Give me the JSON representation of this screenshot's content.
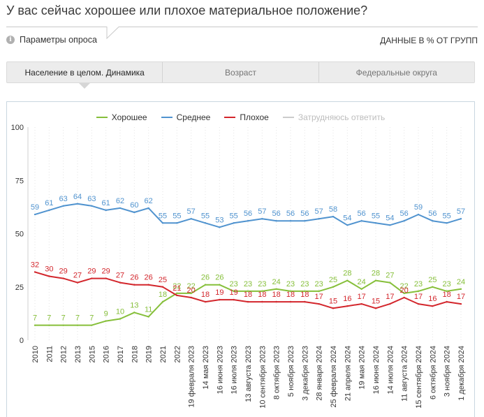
{
  "title": "У вас сейчас хорошее или плохое материальное положение?",
  "survey_params": {
    "label": "Параметры опроса"
  },
  "data_units_note": "ДАННЫЕ В % ОТ ГРУПП",
  "tabs": [
    {
      "label": "Население в целом. Динамика",
      "active": true
    },
    {
      "label": "Возраст",
      "active": false
    },
    {
      "label": "Федеральные округа",
      "active": false
    }
  ],
  "chart_data": {
    "type": "line",
    "title": "",
    "xlabel": "",
    "ylabel": "",
    "ylim": [
      0,
      100
    ],
    "yticks": [
      0,
      25,
      50,
      75,
      100
    ],
    "legend_position": "top-center",
    "grid": {
      "vertical": true,
      "horizontal": false
    },
    "categories": [
      "2010",
      "2011",
      "2012",
      "2013",
      "2015",
      "2016",
      "2017",
      "2018",
      "2019",
      "2021",
      "2022",
      "19 февраля 2023",
      "14 мая 2023",
      "16 июня 2023",
      "16 июля 2023",
      "13 августа 2023",
      "10 сентября 2023",
      "8 октября 2023",
      "5 ноября 2023",
      "3 декабря 2023",
      "28 января 2024",
      "25 февраля 2024",
      "21 апреля 2024",
      "19 мая 2024",
      "16 июня 2024",
      "14 июля 2024",
      "11 августа 2024",
      "15 сентября 2024",
      "6 октября 2024",
      "3 ноября 2024",
      "1 декабря 2024"
    ],
    "series": [
      {
        "name": "Хорошее",
        "color": "#86bf3a",
        "visible": true,
        "values": [
          7,
          7,
          7,
          7,
          7,
          9,
          10,
          13,
          11,
          18,
          22,
          22,
          26,
          26,
          23,
          23,
          23,
          24,
          23,
          23,
          23,
          25,
          28,
          24,
          28,
          27,
          22,
          23,
          25,
          23,
          24
        ]
      },
      {
        "name": "Среднее",
        "color": "#5093cf",
        "visible": true,
        "values": [
          59,
          61,
          63,
          64,
          63,
          61,
          62,
          60,
          62,
          55,
          55,
          57,
          55,
          53,
          55,
          56,
          57,
          56,
          56,
          56,
          57,
          58,
          54,
          56,
          55,
          54,
          56,
          59,
          56,
          55,
          57
        ]
      },
      {
        "name": "Плохое",
        "color": "#d3262c",
        "visible": true,
        "values": [
          32,
          30,
          29,
          27,
          29,
          29,
          27,
          26,
          26,
          25,
          21,
          20,
          18,
          19,
          19,
          18,
          18,
          18,
          18,
          18,
          17,
          15,
          16,
          17,
          15,
          17,
          20,
          17,
          16,
          18,
          17
        ]
      },
      {
        "name": "Затрудняюсь ответить",
        "color": "#cccccc",
        "visible": false
      }
    ]
  }
}
